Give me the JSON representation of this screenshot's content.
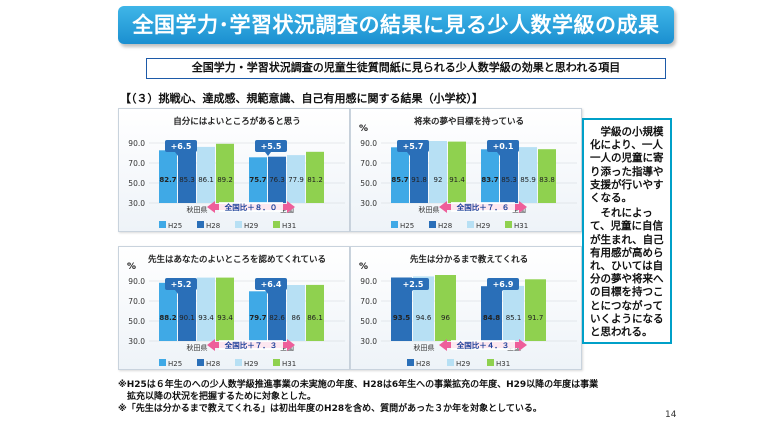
{
  "page": {
    "title": "全国学力･学習状況調査の結果に見る少人数学級の成果",
    "subtitle": "全国学力・学習状況調査の児童生徒質問紙に見られる少人数学級の効果と思われる項目",
    "section": "【（３）挑戦心、達成感、規範意識、自己有用感に関する結果（小学校）】",
    "side_note": [
      "学級の小規模化により、一人一人の児童に寄り添った指導や支援が行いやすくなる。",
      "それによって、児童に自信が生まれ、自己有用感が高められ、ひいては自分の夢や将来への目標を持つことにつながっていくようになると思われる。"
    ],
    "footnotes": [
      "※H25は６年生のへの少人数学級推進事業の未実施の年度、H28は6年生への事業拡充の年度、H29以降の年度は事業",
      "　拡充以降の状況を把握するために対象とした。",
      "※「先生は分かるまで教えてくれる」は初出年度のH28を含め、質問があった３か年を対象としている。"
    ],
    "page_number": "14"
  },
  "colors": {
    "H25": "#3fa9e6",
    "H28": "#2a6fb8",
    "H29": "#b7e0f4",
    "H31": "#8fd14f",
    "callout": "#2a6fb8",
    "arrow": "#ee5e9a",
    "arrow_text": "#1b3f99"
  },
  "chart_data": [
    {
      "type": "bar",
      "title": "自分にはよいところがあると思う",
      "unit_label": "",
      "yticks": [
        "90.0",
        "70.0",
        "50.0",
        "30.0"
      ],
      "ylim": [
        30,
        90
      ],
      "series_names": [
        "H25",
        "H28",
        "H29",
        "H31"
      ],
      "groups": [
        {
          "name": "秋田県",
          "values": [
            82.7,
            85.3,
            86.1,
            89.2
          ],
          "delta": "+6.5"
        },
        {
          "name": "全国",
          "values": [
            75.7,
            76.3,
            77.9,
            81.2
          ],
          "delta": "+5.5"
        }
      ],
      "compare": "全国比＋８．０",
      "legend": [
        "H25",
        "H28",
        "H29",
        "H31"
      ]
    },
    {
      "type": "bar",
      "title": "将来の夢や目標を持っている",
      "unit_label": "%",
      "yticks": [
        "90.0",
        "70.0",
        "50.0",
        "30.0"
      ],
      "ylim": [
        30,
        90
      ],
      "series_names": [
        "H25",
        "H28",
        "H29",
        "H31"
      ],
      "groups": [
        {
          "name": "秋田県",
          "values": [
            85.7,
            91.8,
            92.0,
            91.4
          ],
          "delta": "+5.7"
        },
        {
          "name": "全国",
          "values": [
            83.7,
            85.3,
            85.9,
            83.8
          ],
          "delta": "+0.1"
        }
      ],
      "compare": "全国比＋７．６",
      "legend": [
        "H25",
        "H28",
        "H29",
        "H31"
      ]
    },
    {
      "type": "bar",
      "title": "先生はあなたのよいところを認めてくれている",
      "unit_label": "%",
      "yticks": [
        "90.0",
        "70.0",
        "50.0",
        "30.0"
      ],
      "ylim": [
        30,
        90
      ],
      "series_names": [
        "H25",
        "H28",
        "H29",
        "H31"
      ],
      "groups": [
        {
          "name": "秋田県",
          "values": [
            88.2,
            90.1,
            93.4,
            93.4
          ],
          "delta": "+5.2"
        },
        {
          "name": "全国",
          "values": [
            79.7,
            82.6,
            86.0,
            86.1
          ],
          "delta": "+6.4"
        }
      ],
      "compare": "全国比＋７．３",
      "legend": [
        "H25",
        "H28",
        "H29",
        "H31"
      ]
    },
    {
      "type": "bar",
      "title": "先生は分かるまで教えてくれる",
      "unit_label": "%",
      "yticks": [
        "90.0",
        "70.0",
        "50.0",
        "30.0"
      ],
      "ylim": [
        30,
        90
      ],
      "series_names": [
        "H28",
        "H29",
        "H31"
      ],
      "groups": [
        {
          "name": "秋田県",
          "values": [
            93.5,
            94.6,
            96.0
          ],
          "delta": "+2.5"
        },
        {
          "name": "全国",
          "values": [
            84.8,
            85.1,
            91.7
          ],
          "delta": "+6.9"
        }
      ],
      "compare": "全国比＋４．３",
      "legend": [
        "H28",
        "H29",
        "H31"
      ]
    }
  ]
}
